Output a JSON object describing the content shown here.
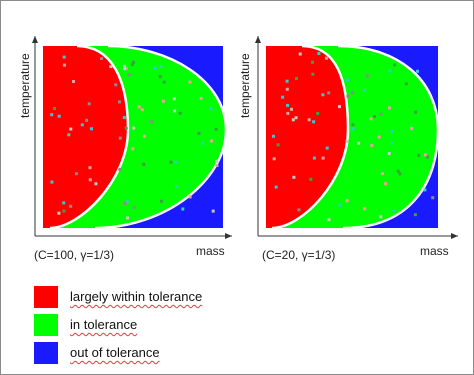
{
  "panels": [
    {
      "caption": "(C=100, γ=1/3)",
      "xlabel": "mass",
      "ylabel": "temperature",
      "inner_curve": "red",
      "outer_curve": "green"
    },
    {
      "caption": "(C=20, γ=1/3)",
      "xlabel": "mass",
      "ylabel": "temperature",
      "inner_curve": "red",
      "outer_curve": "green"
    }
  ],
  "legend": {
    "items": [
      {
        "label": "largely within tolerance",
        "color": "#ff0000"
      },
      {
        "label": "in tolerance",
        "color": "#00ff00"
      },
      {
        "label": "out of tolerance",
        "color": "#1a1aff"
      }
    ]
  },
  "colors": {
    "red_region": "#ff0000",
    "green_region": "#00ff00",
    "blue_region": "#1a1aff",
    "boundary": "#ffffff",
    "axis": "#333333"
  }
}
